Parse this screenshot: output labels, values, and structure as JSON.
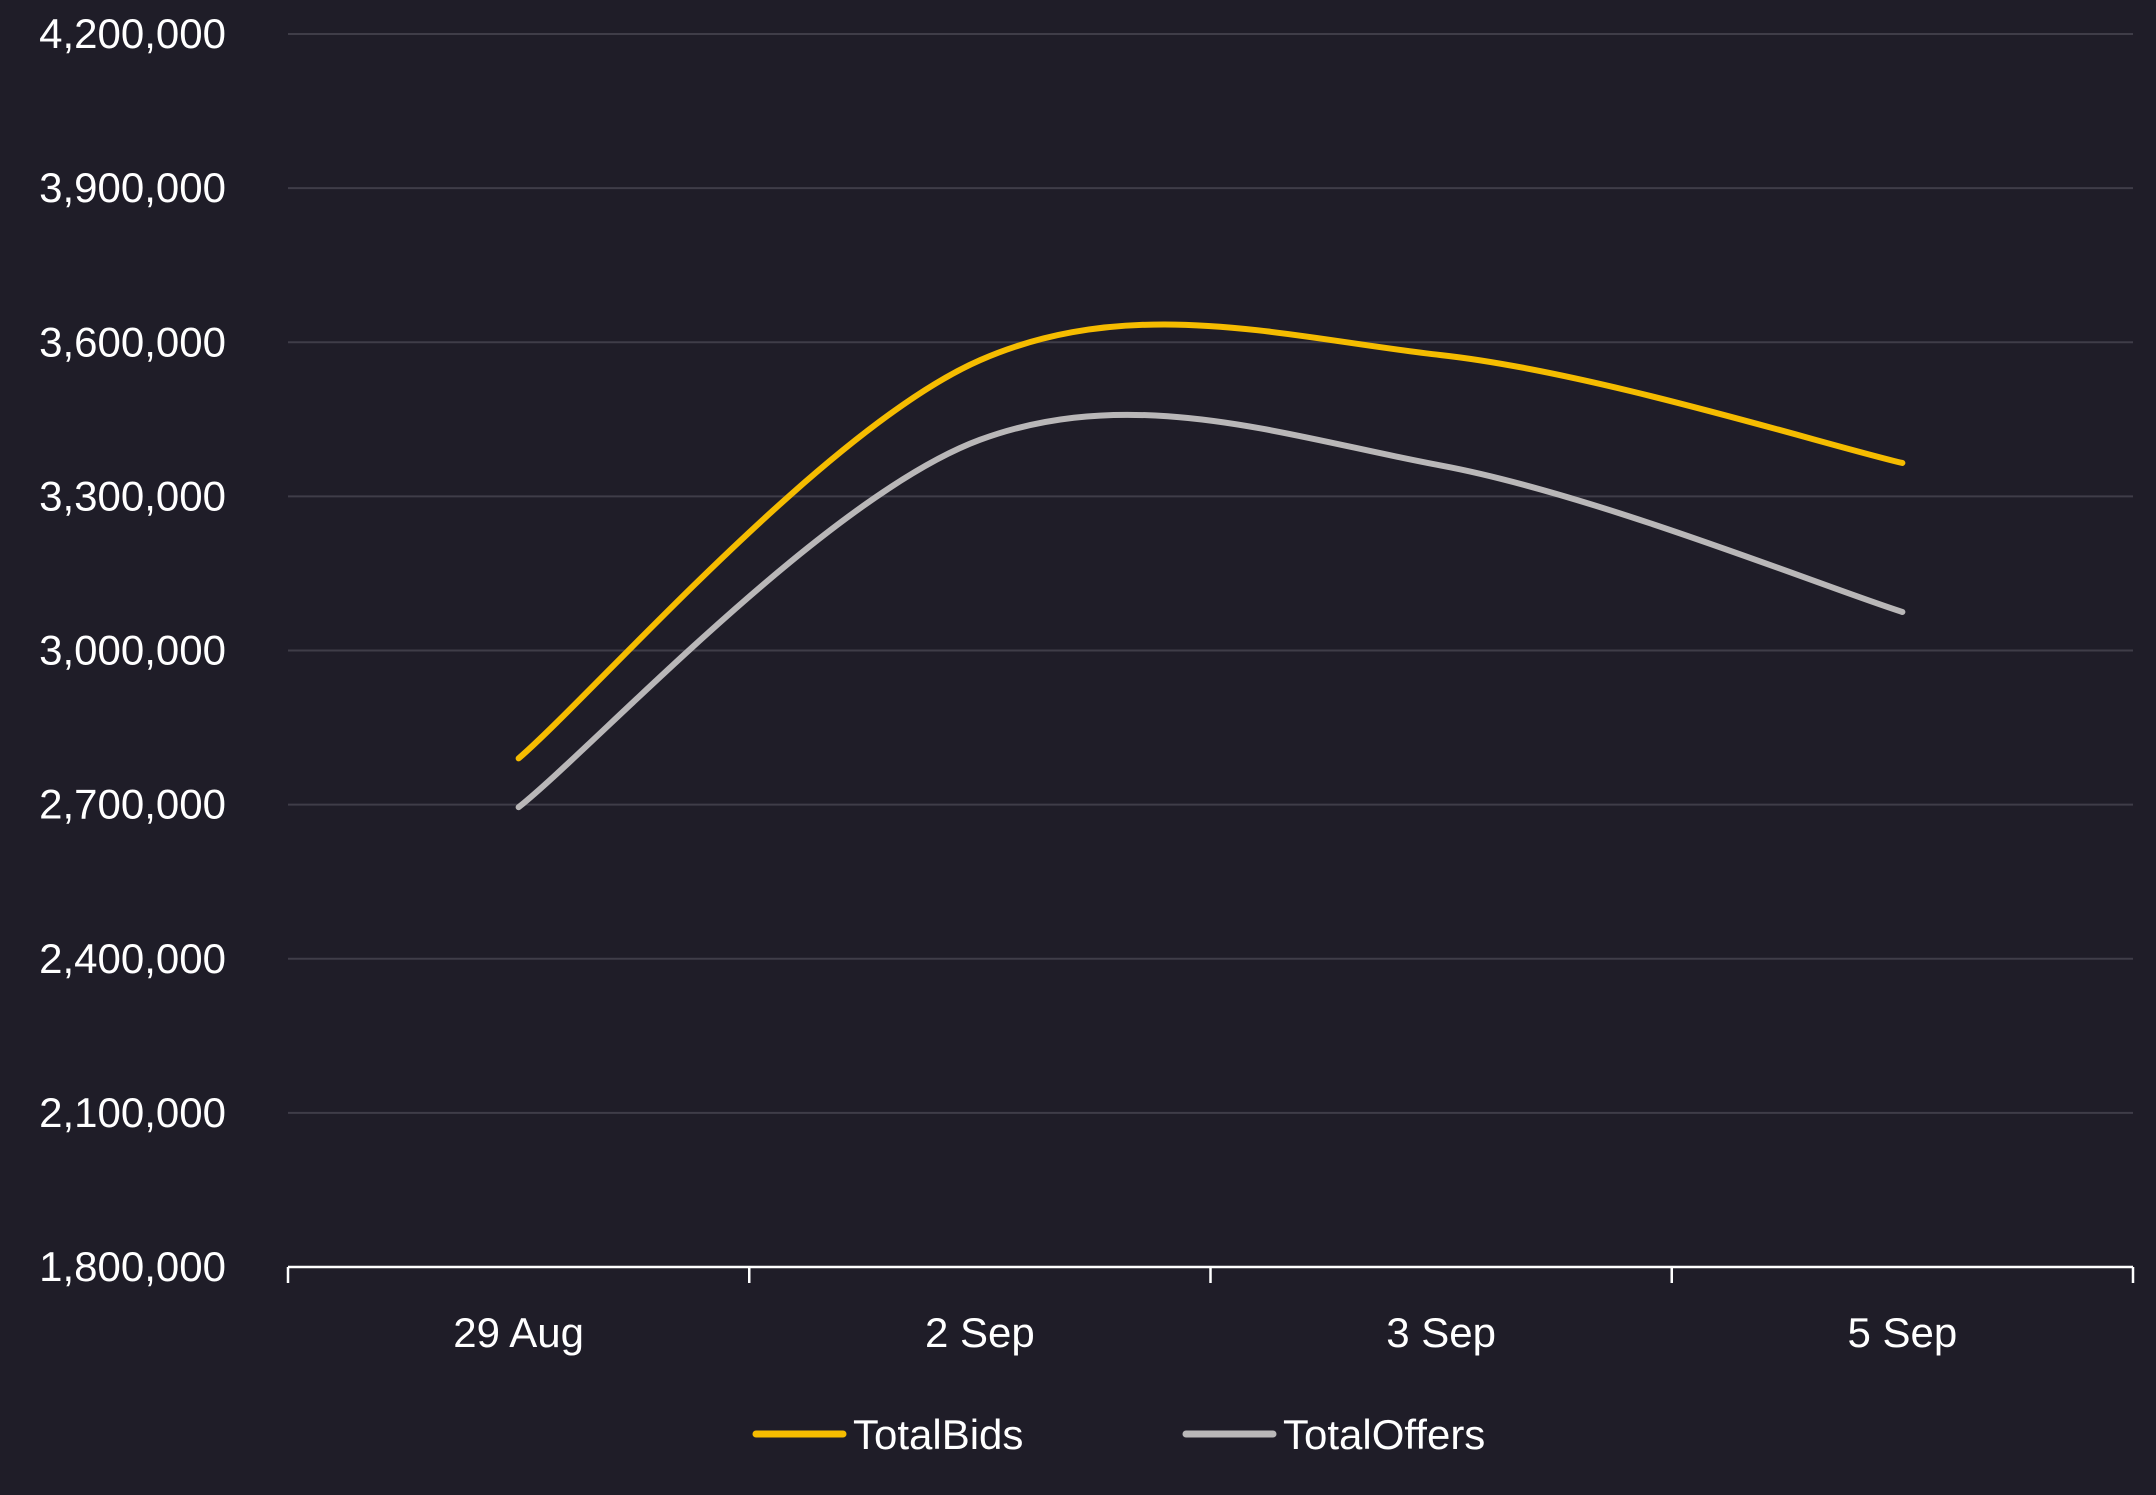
{
  "chart_data": {
    "type": "line",
    "categories": [
      "29 Aug",
      "2 Sep",
      "3 Sep",
      "5 Sep"
    ],
    "series": [
      {
        "name": "TotalBids",
        "color": "#f5bc00",
        "values": [
          2790000,
          3565000,
          3575000,
          3365000
        ]
      },
      {
        "name": "TotalOffers",
        "color": "#b9b7b8",
        "values": [
          2695000,
          3410000,
          3360000,
          3075000
        ]
      }
    ],
    "ylim": [
      1800000,
      4200000
    ],
    "yticks": [
      1800000,
      2100000,
      2400000,
      2700000,
      3000000,
      3300000,
      3600000,
      3900000,
      4200000
    ],
    "ytick_labels": [
      "1,800,000",
      "2,100,000",
      "2,400,000",
      "2,700,000",
      "3,000,000",
      "3,300,000",
      "3,600,000",
      "3,900,000",
      "4,200,000"
    ],
    "title": "",
    "xlabel": "",
    "ylabel": "",
    "grid": true,
    "legend_position": "bottom-center",
    "smooth": true,
    "background_color": "#1f1d28",
    "grid_color": "#3f3d48",
    "axis_color": "#ffffff",
    "text_color": "#ffffff"
  }
}
